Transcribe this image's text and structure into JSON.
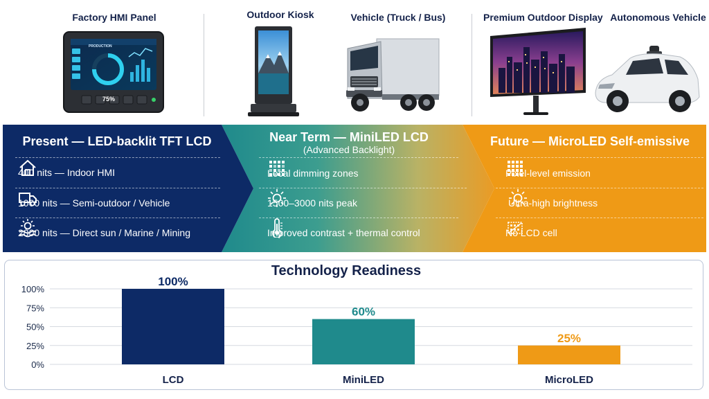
{
  "devices": [
    {
      "label": "Factory HMI Panel"
    },
    {
      "label": "Outdoor Kiosk"
    },
    {
      "label": "Vehicle (Truck / Bus)"
    },
    {
      "label": "Premium Outdoor Display"
    },
    {
      "label": "Autonomous Vehicle"
    }
  ],
  "hmi": {
    "screen_title": "PRODUCTION",
    "gauge_value": "75%",
    "keys": [
      "F1",
      "F2",
      "F3",
      "F4",
      "F5"
    ]
  },
  "phases": [
    {
      "title": "Present — LED-backlit TFT LCD",
      "subtitle": "",
      "color": "#0d2a66",
      "items": [
        {
          "icon": "house-icon",
          "text": "400 nits — Indoor HMI"
        },
        {
          "icon": "truck-icon",
          "text": "1000 nits — Semi-outdoor / Vehicle"
        },
        {
          "icon": "sun-over-water-icon",
          "text": "2000 nits — Direct sun / Marine / Mining"
        }
      ]
    },
    {
      "title": "Near Term — MiniLED LCD",
      "subtitle": "(Advanced Backlight)",
      "color": "#1f8a8c",
      "items": [
        {
          "icon": "dimming-grid-icon",
          "text": "Local dimming zones"
        },
        {
          "icon": "sun-icon",
          "text": "1500–3000 nits peak"
        },
        {
          "icon": "thermometer-icon",
          "text": "Improved contrast + thermal control"
        }
      ]
    },
    {
      "title": "Future — MicroLED Self-emissive",
      "subtitle": "",
      "color": "#ef9a16",
      "items": [
        {
          "icon": "pixel-grid-icon",
          "text": "Pixel-level emission"
        },
        {
          "icon": "sun-icon",
          "text": "Ultra-high brightness"
        },
        {
          "icon": "no-lcd-cell-icon",
          "text": "No LCD cell"
        }
      ]
    }
  ],
  "colors": {
    "navy": "#0d2a66",
    "teal": "#1f8a8c",
    "orange": "#ef9a16"
  },
  "chart_data": {
    "type": "bar",
    "title": "Technology Readiness",
    "categories": [
      "LCD",
      "MiniLED",
      "MicroLED"
    ],
    "values": [
      100,
      60,
      25
    ],
    "value_labels": [
      "100%",
      "60%",
      "25%"
    ],
    "bar_colors": [
      "#0d2a66",
      "#1f8a8c",
      "#ef9a16"
    ],
    "ylim": [
      0,
      100
    ],
    "yticks": [
      0,
      25,
      50,
      75,
      100
    ],
    "ytick_labels": [
      "0%",
      "25%",
      "50%",
      "75%",
      "100%"
    ],
    "grid": true,
    "xlabel": "",
    "ylabel": ""
  }
}
